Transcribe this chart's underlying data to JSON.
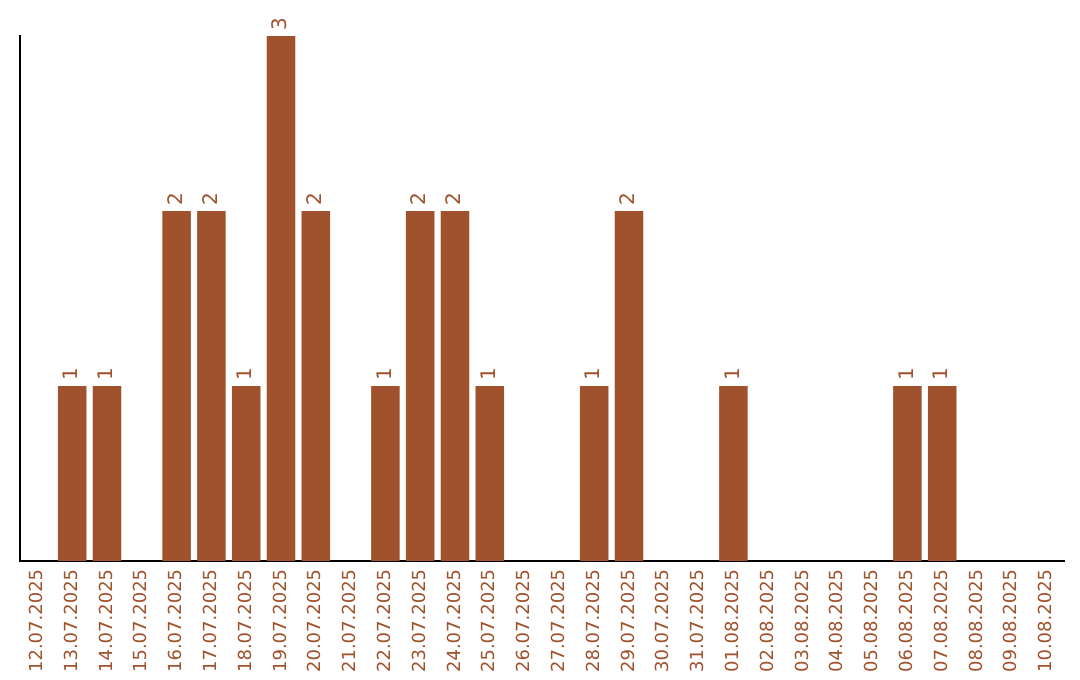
{
  "chart_data": {
    "type": "bar",
    "categories": [
      "12.07.2025",
      "13.07.2025",
      "14.07.2025",
      "15.07.2025",
      "16.07.2025",
      "17.07.2025",
      "18.07.2025",
      "19.07.2025",
      "20.07.2025",
      "21.07.2025",
      "22.07.2025",
      "23.07.2025",
      "24.07.2025",
      "25.07.2025",
      "26.07.2025",
      "27.07.2025",
      "28.07.2025",
      "29.07.2025",
      "30.07.2025",
      "31.07.2025",
      "01.08.2025",
      "02.08.2025",
      "03.08.2025",
      "04.08.2025",
      "05.08.2025",
      "06.08.2025",
      "07.08.2025",
      "08.08.2025",
      "09.08.2025",
      "10.08.2025"
    ],
    "values": [
      0,
      1,
      1,
      0,
      2,
      2,
      1,
      3,
      2,
      0,
      1,
      2,
      2,
      1,
      0,
      0,
      1,
      2,
      0,
      0,
      1,
      0,
      0,
      0,
      0,
      1,
      1,
      0,
      0,
      0
    ],
    "value_labels": [
      null,
      "1",
      "1",
      null,
      "2",
      "2",
      "1",
      "3",
      "2",
      null,
      "1",
      "2",
      "2",
      "1",
      null,
      null,
      "1",
      "2",
      null,
      null,
      "1",
      null,
      null,
      null,
      null,
      "1",
      "1",
      null,
      null,
      null
    ],
    "color": "#a0522d",
    "tick_labels": "x",
    "grid": false,
    "legend": false
  }
}
